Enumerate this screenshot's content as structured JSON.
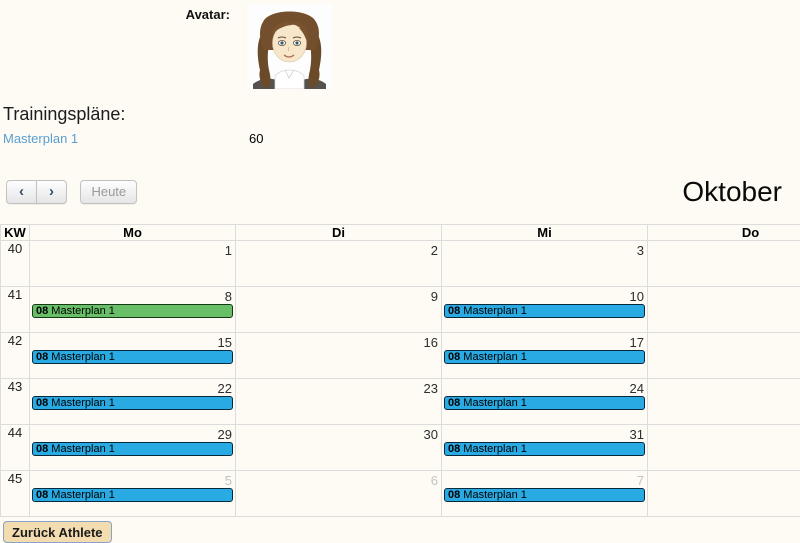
{
  "profile": {
    "avatar_label": "Avatar:",
    "trainings_heading": "Trainingspläne:",
    "plan_link": "Masterplan 1",
    "plan_value": "60"
  },
  "toolbar": {
    "prev": "‹",
    "next": "›",
    "today_label": "Heute",
    "title": "Oktober"
  },
  "calendar": {
    "kw_header": "KW",
    "day_headers": [
      "Mo",
      "Di",
      "Mi",
      "Do"
    ],
    "weeks": [
      {
        "kw": "40",
        "days": [
          {
            "num": "1",
            "other": false,
            "events": []
          },
          {
            "num": "2",
            "other": false,
            "events": []
          },
          {
            "num": "3",
            "other": false,
            "events": []
          },
          {
            "num": "",
            "other": false,
            "events": []
          }
        ]
      },
      {
        "kw": "41",
        "days": [
          {
            "num": "8",
            "other": false,
            "events": [
              {
                "time": "08",
                "title": "Masterplan 1",
                "color": "green"
              }
            ]
          },
          {
            "num": "9",
            "other": false,
            "events": []
          },
          {
            "num": "10",
            "other": false,
            "events": [
              {
                "time": "08",
                "title": "Masterplan 1",
                "color": "blue"
              }
            ]
          },
          {
            "num": "",
            "other": false,
            "events": []
          }
        ]
      },
      {
        "kw": "42",
        "days": [
          {
            "num": "15",
            "other": false,
            "events": [
              {
                "time": "08",
                "title": "Masterplan 1",
                "color": "blue"
              }
            ]
          },
          {
            "num": "16",
            "other": false,
            "events": []
          },
          {
            "num": "17",
            "other": false,
            "events": [
              {
                "time": "08",
                "title": "Masterplan 1",
                "color": "blue"
              }
            ]
          },
          {
            "num": "",
            "other": false,
            "events": []
          }
        ]
      },
      {
        "kw": "43",
        "days": [
          {
            "num": "22",
            "other": false,
            "events": [
              {
                "time": "08",
                "title": "Masterplan 1",
                "color": "blue"
              }
            ]
          },
          {
            "num": "23",
            "other": false,
            "events": []
          },
          {
            "num": "24",
            "other": false,
            "events": [
              {
                "time": "08",
                "title": "Masterplan 1",
                "color": "blue"
              }
            ]
          },
          {
            "num": "",
            "other": false,
            "events": []
          }
        ]
      },
      {
        "kw": "44",
        "days": [
          {
            "num": "29",
            "other": false,
            "events": [
              {
                "time": "08",
                "title": "Masterplan 1",
                "color": "blue"
              }
            ]
          },
          {
            "num": "30",
            "other": false,
            "events": []
          },
          {
            "num": "31",
            "other": false,
            "events": [
              {
                "time": "08",
                "title": "Masterplan 1",
                "color": "blue"
              }
            ]
          },
          {
            "num": "",
            "other": false,
            "events": []
          }
        ]
      },
      {
        "kw": "45",
        "days": [
          {
            "num": "5",
            "other": true,
            "events": [
              {
                "time": "08",
                "title": "Masterplan 1",
                "color": "blue"
              }
            ]
          },
          {
            "num": "6",
            "other": true,
            "events": []
          },
          {
            "num": "7",
            "other": true,
            "events": [
              {
                "time": "08",
                "title": "Masterplan 1",
                "color": "blue"
              }
            ]
          },
          {
            "num": "",
            "other": false,
            "events": []
          }
        ]
      }
    ]
  },
  "colors": {
    "green": "#68bf68",
    "green_border": "#143a14",
    "blue": "#29aae2",
    "blue_border": "#06293e",
    "link": "#5b9ed1"
  },
  "footer": {
    "back_label": "Zurück Athlete"
  }
}
